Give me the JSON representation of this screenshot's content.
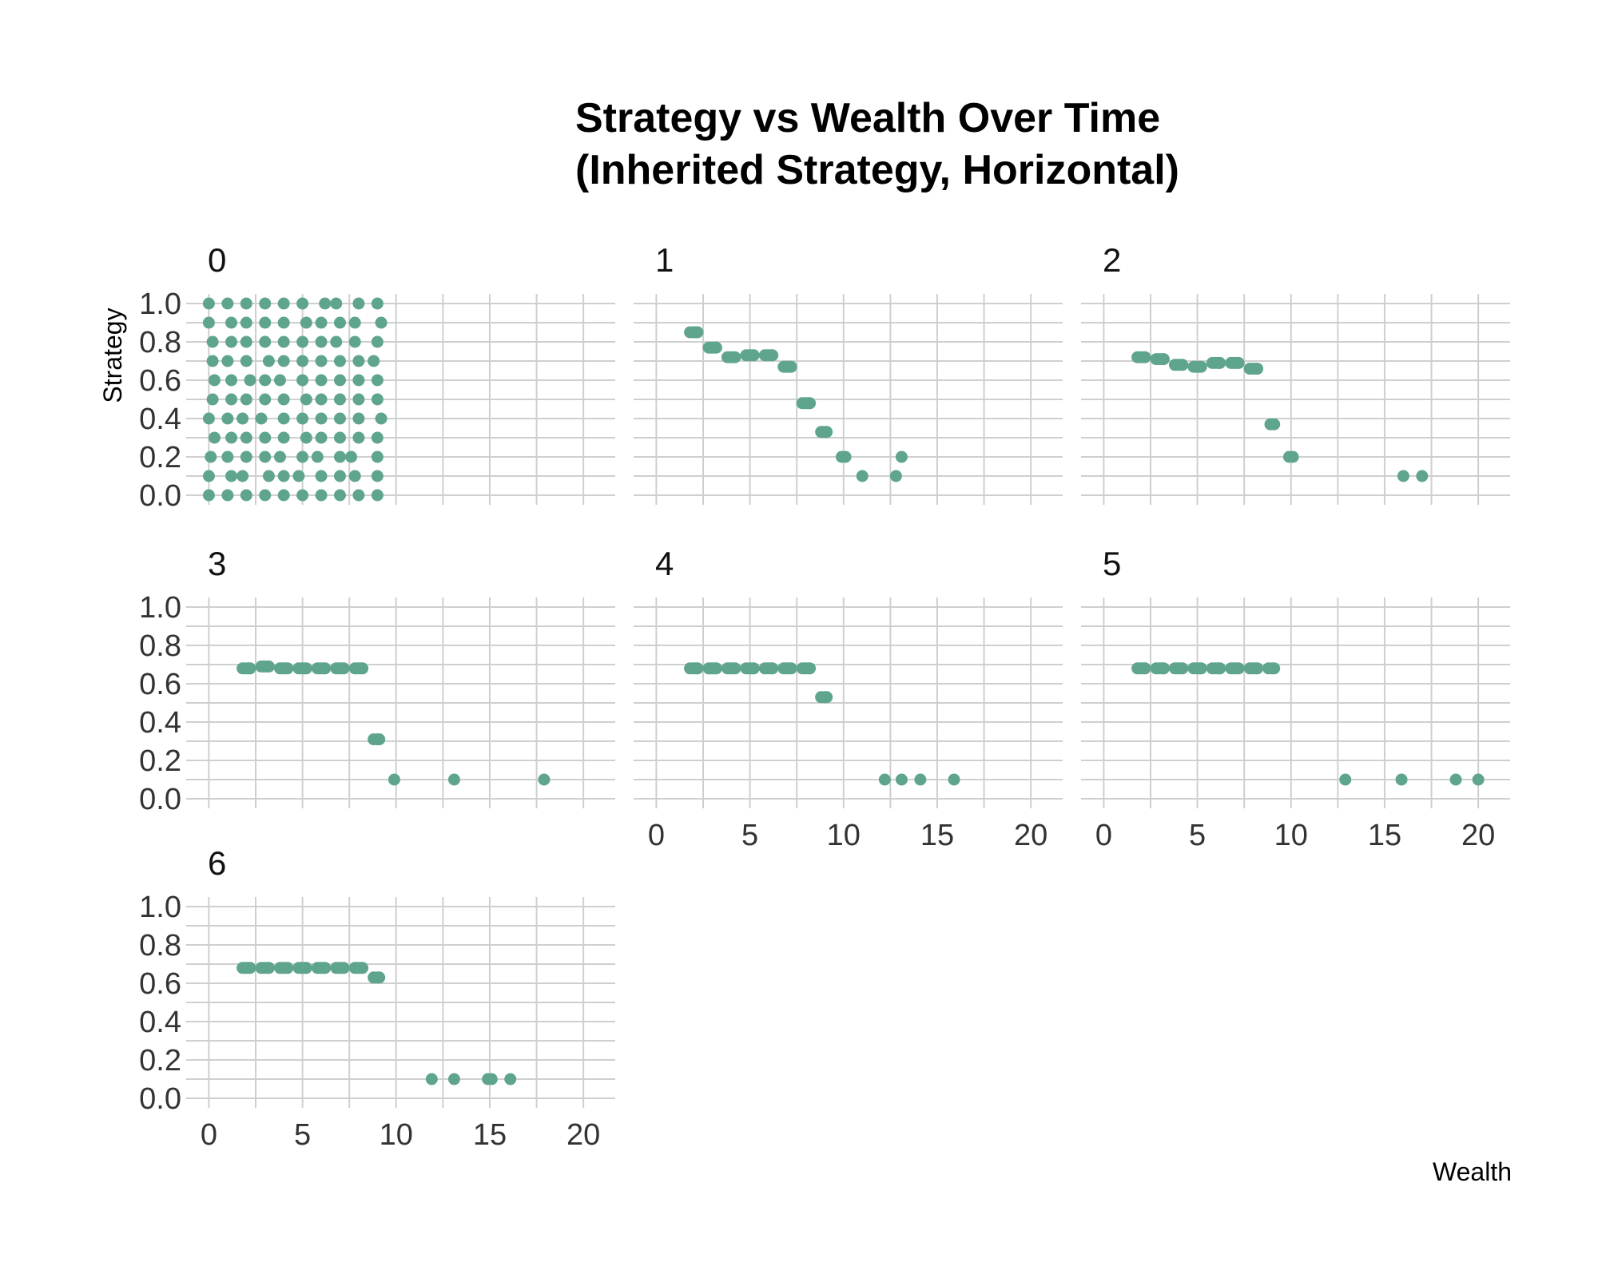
{
  "chart_data": {
    "type": "scatter",
    "title": "Strategy vs Wealth Over Time\n(Inherited Strategy, Horizontal)",
    "xlabel": "Wealth",
    "ylabel": "Strategy",
    "xlim": [
      0,
      21
    ],
    "ylim": [
      0,
      1.0
    ],
    "x_ticks": [
      0,
      5,
      10,
      15,
      20
    ],
    "y_ticks": [
      0.0,
      0.2,
      0.4,
      0.6,
      0.8,
      1.0
    ],
    "y_tick_labels": [
      "0.0",
      "0.2",
      "0.4",
      "0.6",
      "0.8",
      "1.0"
    ],
    "color": "#5fa58d",
    "grid": true,
    "panels": [
      {
        "label": "0",
        "points": [
          [
            0,
            1.0
          ],
          [
            1,
            1.0
          ],
          [
            2,
            1.0
          ],
          [
            3,
            1.0
          ],
          [
            4,
            1.0
          ],
          [
            5,
            1.0
          ],
          [
            6.2,
            1.0
          ],
          [
            6.8,
            1.0
          ],
          [
            8,
            1.0
          ],
          [
            9,
            1.0
          ],
          [
            0,
            0.9
          ],
          [
            1.2,
            0.9
          ],
          [
            2,
            0.9
          ],
          [
            3,
            0.9
          ],
          [
            4,
            0.9
          ],
          [
            5.2,
            0.9
          ],
          [
            6,
            0.9
          ],
          [
            7,
            0.9
          ],
          [
            7.8,
            0.9
          ],
          [
            9.2,
            0.9
          ],
          [
            0.2,
            0.8
          ],
          [
            1.2,
            0.8
          ],
          [
            2,
            0.8
          ],
          [
            3,
            0.8
          ],
          [
            4,
            0.8
          ],
          [
            5,
            0.8
          ],
          [
            6,
            0.8
          ],
          [
            6.8,
            0.8
          ],
          [
            7.8,
            0.8
          ],
          [
            9,
            0.8
          ],
          [
            0.2,
            0.7
          ],
          [
            1,
            0.7
          ],
          [
            2,
            0.7
          ],
          [
            3.2,
            0.7
          ],
          [
            4,
            0.7
          ],
          [
            5,
            0.7
          ],
          [
            6,
            0.7
          ],
          [
            7,
            0.7
          ],
          [
            8,
            0.7
          ],
          [
            8.8,
            0.7
          ],
          [
            0.3,
            0.6
          ],
          [
            1.2,
            0.6
          ],
          [
            2.2,
            0.6
          ],
          [
            3,
            0.6
          ],
          [
            3.8,
            0.6
          ],
          [
            5,
            0.6
          ],
          [
            6,
            0.6
          ],
          [
            7,
            0.6
          ],
          [
            8,
            0.6
          ],
          [
            9,
            0.6
          ],
          [
            0.2,
            0.5
          ],
          [
            1.2,
            0.5
          ],
          [
            2,
            0.5
          ],
          [
            3,
            0.5
          ],
          [
            4,
            0.5
          ],
          [
            5.2,
            0.5
          ],
          [
            6,
            0.5
          ],
          [
            7,
            0.5
          ],
          [
            8,
            0.5
          ],
          [
            9,
            0.5
          ],
          [
            0,
            0.4
          ],
          [
            1,
            0.4
          ],
          [
            1.8,
            0.4
          ],
          [
            2.8,
            0.4
          ],
          [
            4,
            0.4
          ],
          [
            5,
            0.4
          ],
          [
            6,
            0.4
          ],
          [
            7,
            0.4
          ],
          [
            8,
            0.4
          ],
          [
            9.2,
            0.4
          ],
          [
            0.3,
            0.3
          ],
          [
            1.2,
            0.3
          ],
          [
            2,
            0.3
          ],
          [
            3,
            0.3
          ],
          [
            4,
            0.3
          ],
          [
            5.2,
            0.3
          ],
          [
            6,
            0.3
          ],
          [
            7,
            0.3
          ],
          [
            8,
            0.3
          ],
          [
            9,
            0.3
          ],
          [
            0.1,
            0.2
          ],
          [
            1,
            0.2
          ],
          [
            2,
            0.2
          ],
          [
            3,
            0.2
          ],
          [
            3.8,
            0.2
          ],
          [
            5,
            0.2
          ],
          [
            5.8,
            0.2
          ],
          [
            7,
            0.2
          ],
          [
            7.6,
            0.2
          ],
          [
            9,
            0.2
          ],
          [
            0,
            0.1
          ],
          [
            1.2,
            0.1
          ],
          [
            1.8,
            0.1
          ],
          [
            3.2,
            0.1
          ],
          [
            4,
            0.1
          ],
          [
            4.8,
            0.1
          ],
          [
            6,
            0.1
          ],
          [
            7,
            0.1
          ],
          [
            7.8,
            0.1
          ],
          [
            9,
            0.1
          ],
          [
            0,
            0.0
          ],
          [
            1,
            0.0
          ],
          [
            2,
            0.0
          ],
          [
            3,
            0.0
          ],
          [
            4,
            0.0
          ],
          [
            5,
            0.0
          ],
          [
            6,
            0.0
          ],
          [
            7,
            0.0
          ],
          [
            8,
            0.0
          ],
          [
            9,
            0.0
          ]
        ]
      },
      {
        "label": "1",
        "points": [
          [
            1.8,
            0.85
          ],
          [
            1.95,
            0.85
          ],
          [
            2.1,
            0.85
          ],
          [
            2.2,
            0.85
          ],
          [
            2.8,
            0.77
          ],
          [
            2.95,
            0.77
          ],
          [
            3.1,
            0.77
          ],
          [
            3.2,
            0.77
          ],
          [
            3.8,
            0.72
          ],
          [
            3.95,
            0.72
          ],
          [
            4.1,
            0.72
          ],
          [
            4.2,
            0.72
          ],
          [
            4.8,
            0.73
          ],
          [
            4.95,
            0.73
          ],
          [
            5.1,
            0.73
          ],
          [
            5.2,
            0.73
          ],
          [
            5.8,
            0.73
          ],
          [
            5.95,
            0.73
          ],
          [
            6.1,
            0.73
          ],
          [
            6.2,
            0.73
          ],
          [
            6.8,
            0.67
          ],
          [
            6.95,
            0.67
          ],
          [
            7.1,
            0.67
          ],
          [
            7.2,
            0.67
          ],
          [
            7.8,
            0.48
          ],
          [
            7.95,
            0.48
          ],
          [
            8.1,
            0.48
          ],
          [
            8.2,
            0.48
          ],
          [
            8.8,
            0.33
          ],
          [
            8.95,
            0.33
          ],
          [
            9.1,
            0.33
          ],
          [
            9.9,
            0.2
          ],
          [
            10.1,
            0.2
          ],
          [
            11,
            0.1
          ],
          [
            12.8,
            0.1
          ],
          [
            13.1,
            0.2
          ]
        ]
      },
      {
        "label": "2",
        "points": [
          [
            1.8,
            0.72
          ],
          [
            1.95,
            0.72
          ],
          [
            2.1,
            0.72
          ],
          [
            2.2,
            0.72
          ],
          [
            2.8,
            0.71
          ],
          [
            2.95,
            0.71
          ],
          [
            3.1,
            0.71
          ],
          [
            3.2,
            0.71
          ],
          [
            3.8,
            0.68
          ],
          [
            3.95,
            0.68
          ],
          [
            4.1,
            0.68
          ],
          [
            4.2,
            0.68
          ],
          [
            4.8,
            0.67
          ],
          [
            4.95,
            0.67
          ],
          [
            5.1,
            0.67
          ],
          [
            5.2,
            0.67
          ],
          [
            5.8,
            0.69
          ],
          [
            5.95,
            0.69
          ],
          [
            6.1,
            0.69
          ],
          [
            6.2,
            0.69
          ],
          [
            6.8,
            0.69
          ],
          [
            6.95,
            0.69
          ],
          [
            7.1,
            0.69
          ],
          [
            7.2,
            0.69
          ],
          [
            7.8,
            0.66
          ],
          [
            7.95,
            0.66
          ],
          [
            8.1,
            0.66
          ],
          [
            8.2,
            0.66
          ],
          [
            8.9,
            0.37
          ],
          [
            9.1,
            0.37
          ],
          [
            9.9,
            0.2
          ],
          [
            10.1,
            0.2
          ],
          [
            16,
            0.1
          ],
          [
            17,
            0.1
          ]
        ]
      },
      {
        "label": "3",
        "points": [
          [
            1.8,
            0.68
          ],
          [
            1.95,
            0.68
          ],
          [
            2.1,
            0.68
          ],
          [
            2.2,
            0.68
          ],
          [
            2.8,
            0.69
          ],
          [
            2.95,
            0.69
          ],
          [
            3.1,
            0.69
          ],
          [
            3.2,
            0.69
          ],
          [
            3.8,
            0.68
          ],
          [
            3.95,
            0.68
          ],
          [
            4.1,
            0.68
          ],
          [
            4.2,
            0.68
          ],
          [
            4.8,
            0.68
          ],
          [
            4.95,
            0.68
          ],
          [
            5.1,
            0.68
          ],
          [
            5.2,
            0.68
          ],
          [
            5.8,
            0.68
          ],
          [
            5.95,
            0.68
          ],
          [
            6.1,
            0.68
          ],
          [
            6.2,
            0.68
          ],
          [
            6.8,
            0.68
          ],
          [
            6.95,
            0.68
          ],
          [
            7.1,
            0.68
          ],
          [
            7.2,
            0.68
          ],
          [
            7.8,
            0.68
          ],
          [
            7.95,
            0.68
          ],
          [
            8.1,
            0.68
          ],
          [
            8.2,
            0.68
          ],
          [
            8.8,
            0.31
          ],
          [
            9.0,
            0.31
          ],
          [
            9.1,
            0.31
          ],
          [
            9.9,
            0.1
          ],
          [
            13.1,
            0.1
          ],
          [
            17.9,
            0.1
          ]
        ]
      },
      {
        "label": "4",
        "points": [
          [
            1.8,
            0.68
          ],
          [
            1.95,
            0.68
          ],
          [
            2.1,
            0.68
          ],
          [
            2.2,
            0.68
          ],
          [
            2.8,
            0.68
          ],
          [
            2.95,
            0.68
          ],
          [
            3.1,
            0.68
          ],
          [
            3.2,
            0.68
          ],
          [
            3.8,
            0.68
          ],
          [
            3.95,
            0.68
          ],
          [
            4.1,
            0.68
          ],
          [
            4.2,
            0.68
          ],
          [
            4.8,
            0.68
          ],
          [
            4.95,
            0.68
          ],
          [
            5.1,
            0.68
          ],
          [
            5.2,
            0.68
          ],
          [
            5.8,
            0.68
          ],
          [
            5.95,
            0.68
          ],
          [
            6.1,
            0.68
          ],
          [
            6.2,
            0.68
          ],
          [
            6.8,
            0.68
          ],
          [
            6.95,
            0.68
          ],
          [
            7.1,
            0.68
          ],
          [
            7.2,
            0.68
          ],
          [
            7.8,
            0.68
          ],
          [
            7.95,
            0.68
          ],
          [
            8.1,
            0.68
          ],
          [
            8.2,
            0.68
          ],
          [
            8.8,
            0.53
          ],
          [
            9.0,
            0.53
          ],
          [
            9.1,
            0.53
          ],
          [
            12.2,
            0.1
          ],
          [
            13.1,
            0.1
          ],
          [
            14.1,
            0.1
          ],
          [
            15.9,
            0.1
          ]
        ]
      },
      {
        "label": "5",
        "points": [
          [
            1.8,
            0.68
          ],
          [
            1.95,
            0.68
          ],
          [
            2.1,
            0.68
          ],
          [
            2.2,
            0.68
          ],
          [
            2.8,
            0.68
          ],
          [
            2.95,
            0.68
          ],
          [
            3.1,
            0.68
          ],
          [
            3.2,
            0.68
          ],
          [
            3.8,
            0.68
          ],
          [
            3.95,
            0.68
          ],
          [
            4.1,
            0.68
          ],
          [
            4.2,
            0.68
          ],
          [
            4.8,
            0.68
          ],
          [
            4.95,
            0.68
          ],
          [
            5.1,
            0.68
          ],
          [
            5.2,
            0.68
          ],
          [
            5.8,
            0.68
          ],
          [
            5.95,
            0.68
          ],
          [
            6.1,
            0.68
          ],
          [
            6.2,
            0.68
          ],
          [
            6.8,
            0.68
          ],
          [
            6.95,
            0.68
          ],
          [
            7.1,
            0.68
          ],
          [
            7.2,
            0.68
          ],
          [
            7.8,
            0.68
          ],
          [
            7.95,
            0.68
          ],
          [
            8.1,
            0.68
          ],
          [
            8.2,
            0.68
          ],
          [
            8.8,
            0.68
          ],
          [
            9.0,
            0.68
          ],
          [
            9.1,
            0.68
          ],
          [
            12.9,
            0.1
          ],
          [
            15.9,
            0.1
          ],
          [
            18.8,
            0.1
          ],
          [
            20.0,
            0.1
          ]
        ]
      },
      {
        "label": "6",
        "points": [
          [
            1.8,
            0.68
          ],
          [
            1.95,
            0.68
          ],
          [
            2.1,
            0.68
          ],
          [
            2.2,
            0.68
          ],
          [
            2.8,
            0.68
          ],
          [
            2.95,
            0.68
          ],
          [
            3.1,
            0.68
          ],
          [
            3.2,
            0.68
          ],
          [
            3.8,
            0.68
          ],
          [
            3.95,
            0.68
          ],
          [
            4.1,
            0.68
          ],
          [
            4.2,
            0.68
          ],
          [
            4.8,
            0.68
          ],
          [
            4.95,
            0.68
          ],
          [
            5.1,
            0.68
          ],
          [
            5.2,
            0.68
          ],
          [
            5.8,
            0.68
          ],
          [
            5.95,
            0.68
          ],
          [
            6.1,
            0.68
          ],
          [
            6.2,
            0.68
          ],
          [
            6.8,
            0.68
          ],
          [
            6.95,
            0.68
          ],
          [
            7.1,
            0.68
          ],
          [
            7.2,
            0.68
          ],
          [
            7.8,
            0.68
          ],
          [
            7.95,
            0.68
          ],
          [
            8.1,
            0.68
          ],
          [
            8.2,
            0.68
          ],
          [
            8.8,
            0.63
          ],
          [
            9.0,
            0.63
          ],
          [
            9.1,
            0.63
          ],
          [
            11.9,
            0.1
          ],
          [
            13.1,
            0.1
          ],
          [
            14.9,
            0.1
          ],
          [
            15.1,
            0.1
          ],
          [
            16.1,
            0.1
          ]
        ]
      }
    ]
  }
}
